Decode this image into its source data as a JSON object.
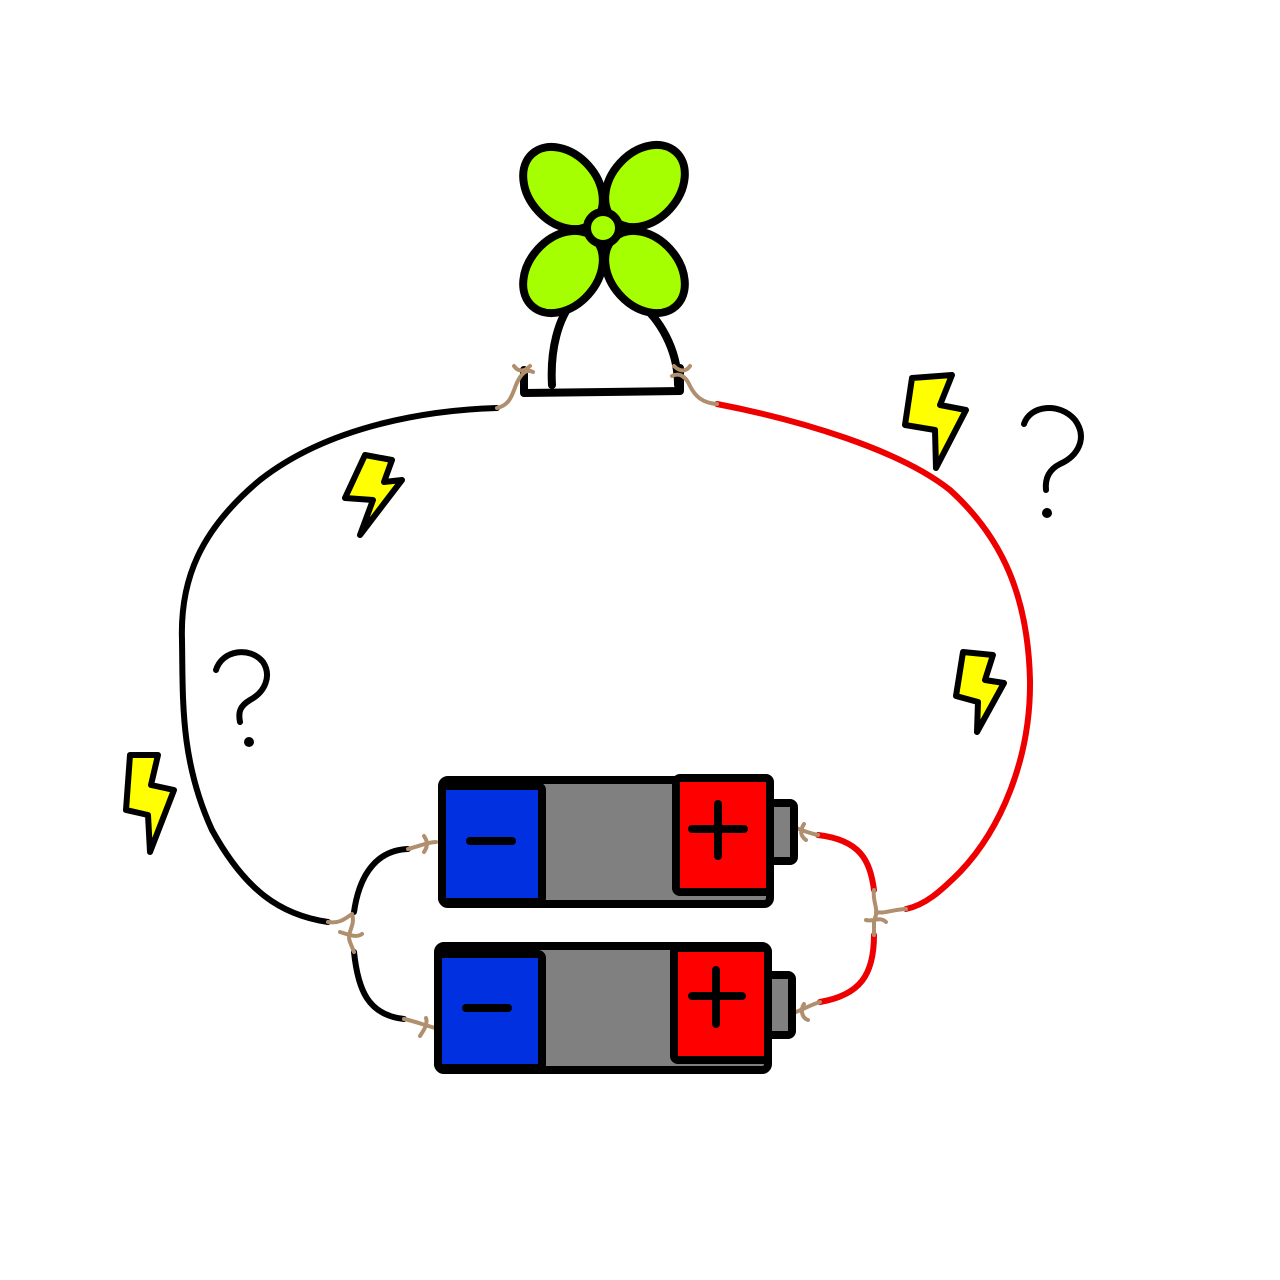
{
  "colors": {
    "negative_wire": "#000000",
    "positive_wire": "#ee0000",
    "wire_twist": "#b08f6e",
    "fan_blade": "#a6ff00",
    "battery_negative": "#0030e0",
    "battery_body": "#808080",
    "battery_positive": "#ff0000",
    "battery_cap": "#808080",
    "spark": "#ffff00",
    "outline": "#000000"
  },
  "icons": {
    "fan": "fan-icon",
    "battery": "battery-icon",
    "spark": "lightning-bolt-icon",
    "question": "question-mark-icon"
  }
}
